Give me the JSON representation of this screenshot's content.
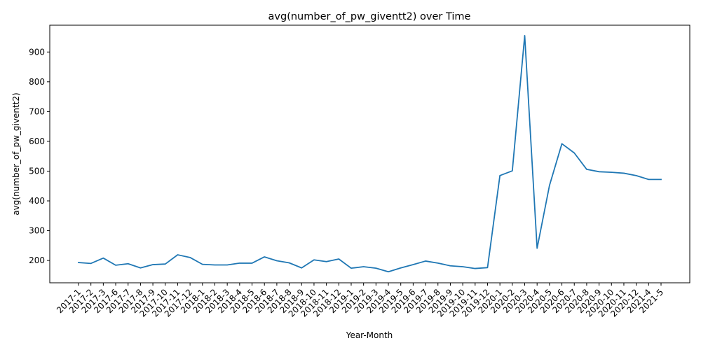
{
  "chart_data": {
    "type": "line",
    "title": "avg(number_of_pw_giventt2) over Time",
    "xlabel": "Year-Month",
    "ylabel": "avg(number_of_pw_giventt2)",
    "ylim": [
      125,
      990
    ],
    "yticks": [
      200,
      300,
      400,
      500,
      600,
      700,
      800,
      900
    ],
    "grid": false,
    "line_color": "#1f77b4",
    "categories": [
      "2017-1",
      "2017-2",
      "2017-3",
      "2017-6",
      "2017-7",
      "2017-8",
      "2017-9",
      "2017-10",
      "2017-11",
      "2017-12",
      "2018-1",
      "2018-2",
      "2018-3",
      "2018-4",
      "2018-5",
      "2018-6",
      "2018-7",
      "2018-8",
      "2018-9",
      "2018-10",
      "2018-11",
      "2018-12",
      "2019-1",
      "2019-2",
      "2019-3",
      "2019-4",
      "2019-5",
      "2019-6",
      "2019-7",
      "2019-8",
      "2019-9",
      "2019-10",
      "2019-11",
      "2019-12",
      "2020-1",
      "2020-2",
      "2020-3",
      "2020-4",
      "2020-5",
      "2020-6",
      "2020-7",
      "2020-8",
      "2020-9",
      "2020-10",
      "2020-11",
      "2020-12",
      "2021-4",
      "2021-5"
    ],
    "series": [
      {
        "name": "avg(number_of_pw_giventt2)",
        "values": [
          193,
          190,
          208,
          184,
          189,
          175,
          186,
          188,
          219,
          210,
          187,
          185,
          185,
          191,
          191,
          212,
          199,
          192,
          175,
          202,
          196,
          205,
          174,
          179,
          174,
          162,
          175,
          186,
          198,
          191,
          182,
          179,
          173,
          176,
          485,
          501,
          955,
          241,
          452,
          592,
          561,
          506,
          498,
          496,
          493,
          485,
          472,
          472
        ]
      }
    ]
  }
}
